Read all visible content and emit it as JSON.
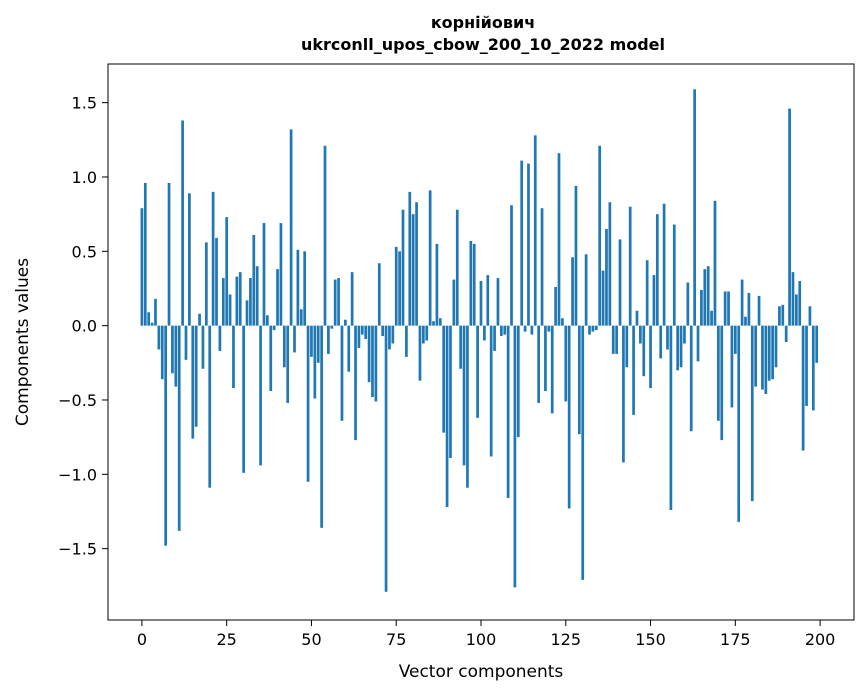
{
  "chart_data": {
    "type": "bar",
    "title": "корнійович",
    "subtitle": "ukrconll_upos_cbow_200_10_2022 model",
    "xlabel": "Vector components",
    "ylabel": "Components values",
    "xlim": [
      -10,
      210
    ],
    "ylim": [
      -1.98,
      1.76
    ],
    "xticks": [
      0,
      25,
      50,
      75,
      100,
      125,
      150,
      175,
      200
    ],
    "yticks": [
      -1.5,
      -1.0,
      -0.5,
      0.0,
      0.5,
      1.0,
      1.5
    ],
    "ytick_labels": [
      "−1.5",
      "−1.0",
      "−0.5",
      "0.0",
      "0.5",
      "1.0",
      "1.5"
    ],
    "grid": false,
    "bar_color": "#1f77b4",
    "values": [
      0.79,
      0.96,
      0.09,
      0.02,
      0.18,
      -0.16,
      -0.36,
      -1.48,
      0.96,
      -0.32,
      -0.41,
      -1.38,
      1.38,
      -0.23,
      0.89,
      -0.76,
      -0.68,
      0.08,
      -0.29,
      0.56,
      -1.09,
      0.9,
      0.59,
      -0.17,
      0.32,
      0.73,
      0.21,
      -0.42,
      0.33,
      0.36,
      -0.99,
      0.17,
      0.32,
      0.61,
      0.4,
      -0.94,
      0.69,
      0.07,
      -0.44,
      -0.03,
      0.38,
      0.69,
      -0.28,
      -0.52,
      1.32,
      -0.18,
      0.51,
      0.11,
      0.5,
      -1.05,
      -0.21,
      -0.49,
      -0.25,
      -1.36,
      1.21,
      -0.19,
      -0.02,
      0.31,
      0.32,
      -0.64,
      0.04,
      -0.31,
      0.36,
      -0.77,
      -0.15,
      -0.06,
      -0.09,
      -0.38,
      -0.48,
      -0.51,
      0.42,
      -0.07,
      -1.79,
      -0.16,
      -0.12,
      0.53,
      0.5,
      0.78,
      -0.21,
      0.9,
      0.75,
      0.83,
      -0.37,
      -0.12,
      -0.1,
      0.91,
      0.03,
      0.55,
      0.05,
      -0.72,
      -1.22,
      -0.89,
      0.31,
      0.78,
      -0.29,
      -0.94,
      -1.09,
      0.57,
      0.55,
      -0.62,
      0.3,
      -0.1,
      0.34,
      -0.88,
      -0.17,
      0.32,
      -0.07,
      -0.06,
      -1.16,
      0.81,
      -1.76,
      -0.75,
      1.11,
      -0.04,
      1.09,
      -0.06,
      1.28,
      -0.52,
      0.79,
      -0.44,
      -0.04,
      -0.59,
      0.26,
      1.16,
      0.05,
      -0.51,
      -1.23,
      0.46,
      0.94,
      -0.73,
      -1.71,
      0.48,
      -0.06,
      -0.04,
      -0.03,
      1.21,
      0.37,
      0.65,
      0.83,
      -0.19,
      -0.19,
      0.58,
      -0.92,
      -0.28,
      0.8,
      -0.6,
      0.1,
      -0.12,
      -0.34,
      0.44,
      -0.42,
      0.34,
      0.75,
      -0.22,
      0.82,
      -0.16,
      -1.24,
      0.68,
      -0.3,
      -0.28,
      -0.12,
      0.29,
      -0.71,
      1.59,
      -0.24,
      0.24,
      0.38,
      0.4,
      0.1,
      0.84,
      -0.64,
      -0.77,
      0.23,
      0.23,
      -0.55,
      -0.19,
      -1.32,
      0.31,
      0.06,
      0.22,
      -1.18,
      -0.41,
      0.2,
      -0.43,
      -0.46,
      -0.37,
      -0.36,
      -0.28,
      0.13,
      0.14,
      -0.11,
      1.46,
      0.36,
      0.21,
      0.3,
      -0.84,
      -0.54,
      0.13,
      -0.57,
      -0.25
    ]
  }
}
